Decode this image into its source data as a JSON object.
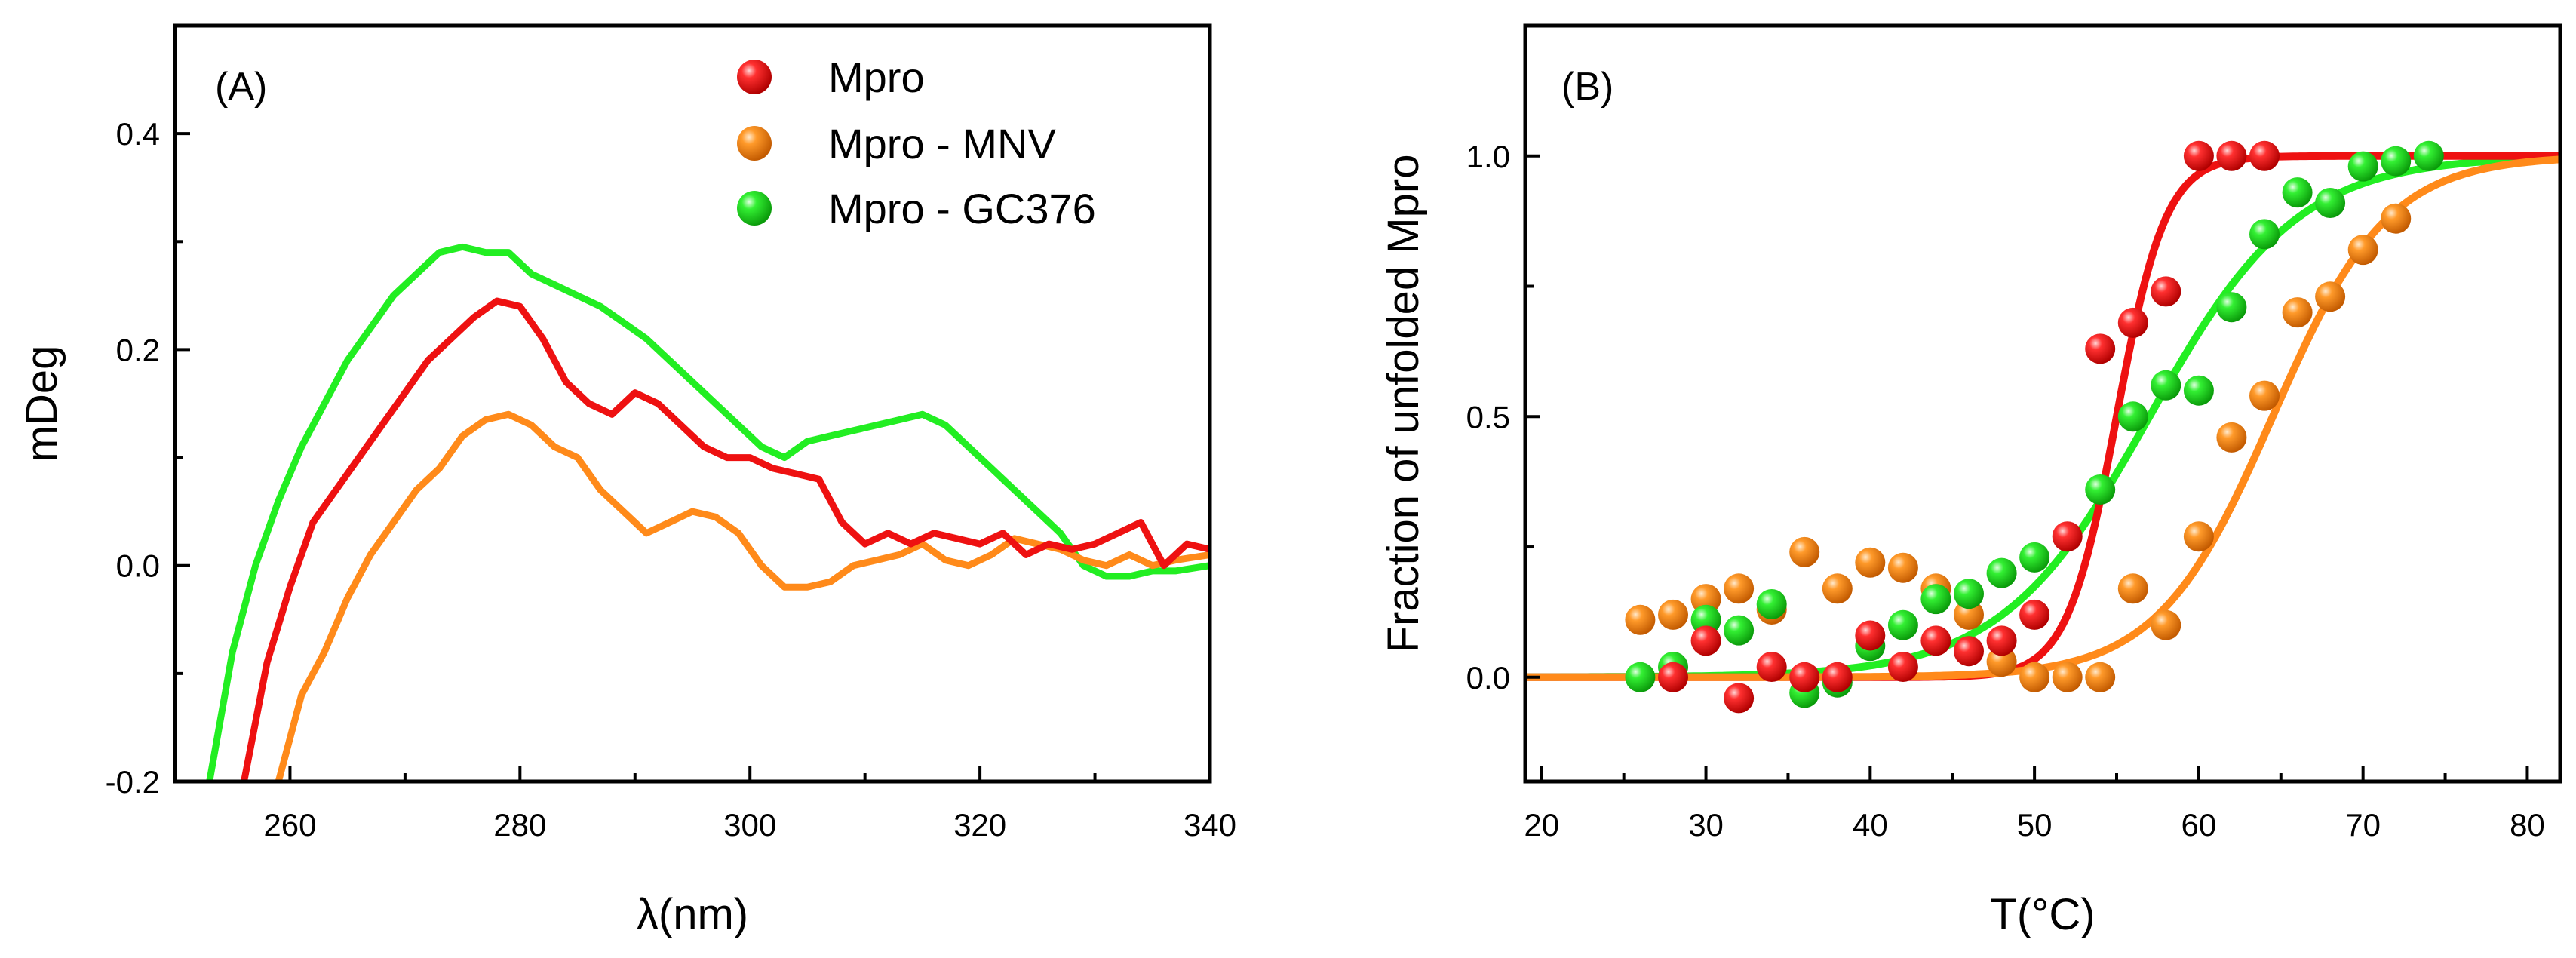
{
  "chart_data": [
    {
      "panel": "(A)",
      "type": "line",
      "xlabel": "λ(nm)",
      "ylabel": "mDeg",
      "xlim": [
        250,
        340
      ],
      "ylim": [
        -0.2,
        0.5
      ],
      "xticks": [
        260,
        280,
        300,
        320,
        340
      ],
      "yticks": [
        -0.2,
        0.0,
        0.2,
        0.4
      ],
      "xtick_labels": [
        "260",
        "280",
        "300",
        "320",
        "340"
      ],
      "ytick_labels": [
        "-0.2",
        "0.0",
        "0.2",
        "0.4"
      ],
      "legend": {
        "position": "top-right",
        "entries": [
          "Mpro",
          "Mpro - MNV",
          "Mpro - GC376"
        ]
      },
      "series": [
        {
          "name": "Mpro",
          "color": "#ee1111",
          "x": [
            256,
            258,
            260,
            262,
            264,
            266,
            268,
            270,
            272,
            274,
            276,
            278,
            280,
            282,
            284,
            286,
            288,
            290,
            292,
            294,
            296,
            298,
            300,
            302,
            304,
            306,
            308,
            310,
            312,
            314,
            316,
            318,
            320,
            322,
            324,
            326,
            328,
            330,
            332,
            334,
            336,
            338,
            340
          ],
          "y": [
            -0.2,
            -0.09,
            -0.02,
            0.04,
            0.07,
            0.1,
            0.13,
            0.16,
            0.19,
            0.21,
            0.23,
            0.245,
            0.24,
            0.21,
            0.17,
            0.15,
            0.14,
            0.16,
            0.15,
            0.13,
            0.11,
            0.1,
            0.1,
            0.09,
            0.085,
            0.08,
            0.04,
            0.02,
            0.03,
            0.02,
            0.03,
            0.025,
            0.02,
            0.03,
            0.01,
            0.02,
            0.015,
            0.02,
            0.03,
            0.04,
            0.0,
            0.02,
            0.015
          ]
        },
        {
          "name": "Mpro - MNV",
          "color": "#ff8a1a",
          "x": [
            259,
            261,
            263,
            265,
            267,
            269,
            271,
            273,
            275,
            277,
            279,
            281,
            283,
            285,
            287,
            289,
            291,
            293,
            295,
            297,
            299,
            301,
            303,
            305,
            307,
            309,
            311,
            313,
            315,
            317,
            319,
            321,
            323,
            325,
            327,
            329,
            331,
            333,
            335,
            337,
            340
          ],
          "y": [
            -0.2,
            -0.12,
            -0.08,
            -0.03,
            0.01,
            0.04,
            0.07,
            0.09,
            0.12,
            0.135,
            0.14,
            0.13,
            0.11,
            0.1,
            0.07,
            0.05,
            0.03,
            0.04,
            0.05,
            0.045,
            0.03,
            0.0,
            -0.02,
            -0.02,
            -0.015,
            0.0,
            0.005,
            0.01,
            0.02,
            0.005,
            0.0,
            0.01,
            0.025,
            0.02,
            0.015,
            0.005,
            0.0,
            0.01,
            0.0,
            0.005,
            0.01
          ]
        },
        {
          "name": "Mpro - GC376",
          "color": "#22ee22",
          "x": [
            253,
            255,
            257,
            259,
            261,
            263,
            265,
            267,
            269,
            271,
            273,
            275,
            277,
            279,
            281,
            283,
            285,
            287,
            289,
            291,
            293,
            295,
            297,
            299,
            301,
            303,
            305,
            307,
            309,
            311,
            313,
            315,
            317,
            319,
            321,
            323,
            325,
            327,
            329,
            331,
            333,
            335,
            337,
            340
          ],
          "y": [
            -0.2,
            -0.08,
            0.0,
            0.06,
            0.11,
            0.15,
            0.19,
            0.22,
            0.25,
            0.27,
            0.29,
            0.295,
            0.29,
            0.29,
            0.27,
            0.26,
            0.25,
            0.24,
            0.225,
            0.21,
            0.19,
            0.17,
            0.15,
            0.13,
            0.11,
            0.1,
            0.115,
            0.12,
            0.125,
            0.13,
            0.135,
            0.14,
            0.13,
            0.11,
            0.09,
            0.07,
            0.05,
            0.03,
            0.0,
            -0.01,
            -0.01,
            -0.005,
            -0.005,
            0.0
          ]
        }
      ]
    },
    {
      "panel": "(B)",
      "type": "scatter",
      "xlabel": "T(°C)",
      "ylabel": "Fraction of unfolded Mpro",
      "xlim": [
        19,
        82
      ],
      "ylim": [
        -0.2,
        1.25
      ],
      "xticks": [
        20,
        30,
        40,
        50,
        60,
        70,
        80
      ],
      "yticks": [
        0.0,
        0.5,
        1.0
      ],
      "xtick_labels": [
        "20",
        "30",
        "40",
        "50",
        "60",
        "70",
        "80"
      ],
      "ytick_labels": [
        "0.0",
        "0.5",
        "1.0"
      ],
      "series": [
        {
          "name": "Mpro",
          "color": "#ee1111",
          "points": [
            [
              28,
              0.0
            ],
            [
              30,
              0.07
            ],
            [
              32,
              -0.04
            ],
            [
              34,
              0.02
            ],
            [
              36,
              0.0
            ],
            [
              38,
              0.0
            ],
            [
              40,
              0.08
            ],
            [
              42,
              0.02
            ],
            [
              44,
              0.07
            ],
            [
              46,
              0.05
            ],
            [
              48,
              0.07
            ],
            [
              50,
              0.12
            ],
            [
              52,
              0.27
            ],
            [
              54,
              0.63
            ],
            [
              56,
              0.68
            ],
            [
              58,
              0.74
            ],
            [
              60,
              1.0
            ],
            [
              62,
              1.0
            ],
            [
              64,
              1.0
            ]
          ],
          "fit": {
            "model": "sigmoid",
            "tm": 55,
            "slope": 1.5
          }
        },
        {
          "name": "Mpro - MNV",
          "color": "#ff8a1a",
          "points": [
            [
              26,
              0.11
            ],
            [
              28,
              0.12
            ],
            [
              30,
              0.15
            ],
            [
              32,
              0.17
            ],
            [
              34,
              0.13
            ],
            [
              36,
              0.24
            ],
            [
              38,
              0.17
            ],
            [
              40,
              0.22
            ],
            [
              42,
              0.21
            ],
            [
              44,
              0.17
            ],
            [
              46,
              0.12
            ],
            [
              48,
              0.03
            ],
            [
              50,
              0.0
            ],
            [
              52,
              0.0
            ],
            [
              54,
              0.0
            ],
            [
              56,
              0.17
            ],
            [
              58,
              0.1
            ],
            [
              60,
              0.27
            ],
            [
              62,
              0.46
            ],
            [
              64,
              0.54
            ],
            [
              66,
              0.7
            ],
            [
              68,
              0.73
            ],
            [
              70,
              0.82
            ],
            [
              72,
              0.88
            ]
          ],
          "fit": {
            "model": "sigmoid",
            "tm": 64.5,
            "slope": 3.5
          }
        },
        {
          "name": "Mpro - GC376",
          "color": "#22ee22",
          "points": [
            [
              26,
              0.0
            ],
            [
              28,
              0.02
            ],
            [
              30,
              0.11
            ],
            [
              32,
              0.09
            ],
            [
              34,
              0.14
            ],
            [
              36,
              -0.03
            ],
            [
              38,
              -0.01
            ],
            [
              40,
              0.06
            ],
            [
              42,
              0.1
            ],
            [
              44,
              0.15
            ],
            [
              46,
              0.16
            ],
            [
              48,
              0.2
            ],
            [
              50,
              0.23
            ],
            [
              54,
              0.36
            ],
            [
              56,
              0.5
            ],
            [
              58,
              0.56
            ],
            [
              60,
              0.55
            ],
            [
              62,
              0.71
            ],
            [
              64,
              0.85
            ],
            [
              66,
              0.93
            ],
            [
              68,
              0.91
            ],
            [
              70,
              0.98
            ],
            [
              72,
              0.99
            ],
            [
              74,
              1.0
            ]
          ],
          "fit": {
            "model": "sigmoid",
            "tm": 57,
            "slope": 4.5
          }
        }
      ]
    }
  ]
}
